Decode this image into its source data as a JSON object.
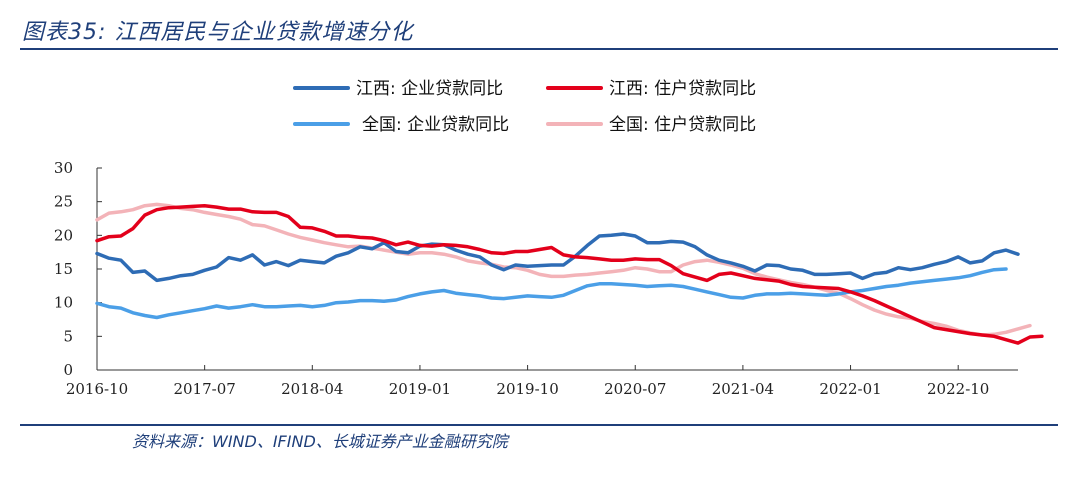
{
  "header": {
    "title": "图表35:  江西居民与企业贷款增速分化"
  },
  "footer": {
    "source": "资料来源：WIND、IFIND、长城证券产业金融研究院"
  },
  "chart_data": {
    "type": "line",
    "title": "江西居民与企业贷款增速分化",
    "xlabel": "",
    "ylabel": "",
    "ylim": [
      0,
      30
    ],
    "yticks": [
      0,
      5,
      10,
      15,
      20,
      25,
      30
    ],
    "xtick_labels": [
      "2016-10",
      "2017-07",
      "2018-04",
      "2019-01",
      "2019-10",
      "2020-07",
      "2021-04",
      "2022-01",
      "2022-10"
    ],
    "x_range": [
      "2016-10",
      "2023-03"
    ],
    "legend_position": "top-center",
    "series": [
      {
        "name": "江西: 企业贷款同比",
        "color": "#2e6cb5",
        "values": [
          17.3,
          16.6,
          16.3,
          14.5,
          14.7,
          13.3,
          13.6,
          14.0,
          14.2,
          14.8,
          15.3,
          16.7,
          16.3,
          17.1,
          15.6,
          16.1,
          15.5,
          16.3,
          16.1,
          15.9,
          16.9,
          17.4,
          18.3,
          18.0,
          18.9,
          17.6,
          17.4,
          18.4,
          18.7,
          18.6,
          17.8,
          17.2,
          16.8,
          15.6,
          14.9,
          15.6,
          15.4,
          15.5,
          15.6,
          15.6,
          16.9,
          18.5,
          19.9,
          20.0,
          20.2,
          19.9,
          18.9,
          18.9,
          19.1,
          19.0,
          18.3,
          17.1,
          16.3,
          15.9,
          15.4,
          14.7,
          15.6,
          15.5,
          15.0,
          14.8,
          14.2,
          14.2,
          14.3,
          14.4,
          13.6,
          14.3,
          14.5,
          15.2,
          14.9,
          15.2,
          15.7,
          16.1,
          16.8,
          15.9,
          16.2,
          17.4,
          17.8,
          17.2
        ]
      },
      {
        "name": "江西: 住户贷款同比",
        "color": "#e3001b",
        "values": [
          19.2,
          19.8,
          19.9,
          21.0,
          23.0,
          23.8,
          24.1,
          24.2,
          24.3,
          24.4,
          24.2,
          23.9,
          23.9,
          23.5,
          23.4,
          23.4,
          22.8,
          21.2,
          21.1,
          20.6,
          19.9,
          19.9,
          19.7,
          19.6,
          19.2,
          18.6,
          19.0,
          18.5,
          18.4,
          18.6,
          18.5,
          18.3,
          17.9,
          17.4,
          17.3,
          17.6,
          17.6,
          17.9,
          18.2,
          17.1,
          16.8,
          16.7,
          16.5,
          16.3,
          16.3,
          16.5,
          16.4,
          16.4,
          15.5,
          14.3,
          13.8,
          13.3,
          14.2,
          14.4,
          14.0,
          13.6,
          13.4,
          13.2,
          12.7,
          12.4,
          12.3,
          12.2,
          12.1,
          11.6,
          11.0,
          10.3,
          9.5,
          8.7,
          7.9,
          7.1,
          6.3,
          6.0,
          5.7,
          5.4,
          5.2,
          5.0,
          4.5,
          4.0,
          4.9,
          5.0
        ]
      },
      {
        "name": "全国: 企业贷款同比",
        "color": "#4b9fe7",
        "values": [
          9.9,
          9.4,
          9.2,
          8.5,
          8.1,
          7.8,
          8.2,
          8.5,
          8.8,
          9.1,
          9.5,
          9.2,
          9.4,
          9.7,
          9.4,
          9.4,
          9.5,
          9.6,
          9.4,
          9.6,
          10.0,
          10.1,
          10.3,
          10.3,
          10.2,
          10.4,
          10.9,
          11.3,
          11.6,
          11.8,
          11.4,
          11.2,
          11.0,
          10.7,
          10.6,
          10.8,
          11.0,
          10.9,
          10.8,
          11.1,
          11.8,
          12.5,
          12.8,
          12.8,
          12.7,
          12.6,
          12.4,
          12.5,
          12.6,
          12.4,
          12.0,
          11.6,
          11.2,
          10.8,
          10.7,
          11.1,
          11.3,
          11.3,
          11.4,
          11.3,
          11.2,
          11.1,
          11.3,
          11.6,
          11.8,
          12.1,
          12.4,
          12.6,
          12.9,
          13.1,
          13.3,
          13.5,
          13.7,
          14.0,
          14.5,
          14.9,
          15.0
        ]
      },
      {
        "name": "全国: 住户贷款同比",
        "color": "#f3b3b8",
        "values": [
          22.3,
          23.3,
          23.5,
          23.8,
          24.4,
          24.6,
          24.4,
          24.0,
          23.8,
          23.4,
          23.1,
          22.8,
          22.4,
          21.6,
          21.4,
          20.8,
          20.2,
          19.7,
          19.3,
          18.9,
          18.6,
          18.3,
          18.4,
          18.1,
          17.8,
          17.5,
          17.2,
          17.4,
          17.4,
          17.2,
          16.8,
          16.2,
          15.9,
          15.7,
          15.3,
          15.2,
          14.8,
          14.2,
          13.9,
          13.9,
          14.1,
          14.2,
          14.4,
          14.6,
          14.8,
          15.2,
          15.0,
          14.6,
          14.6,
          15.6,
          16.1,
          16.3,
          16.0,
          15.6,
          15.1,
          14.3,
          13.8,
          13.4,
          13.0,
          12.7,
          12.3,
          11.8,
          11.4,
          10.6,
          9.7,
          8.9,
          8.3,
          7.9,
          7.7,
          7.2,
          6.9,
          6.5,
          5.9,
          5.5,
          5.2,
          5.3,
          5.6,
          6.1,
          6.6
        ]
      }
    ]
  }
}
